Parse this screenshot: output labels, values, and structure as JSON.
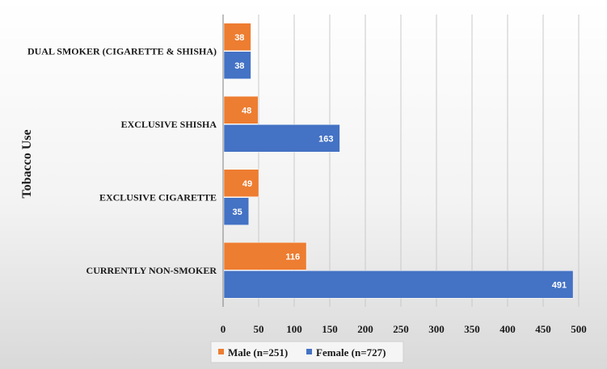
{
  "chart_data": {
    "type": "bar",
    "orientation": "horizontal",
    "categories": [
      "DUAL SMOKER (CIGARETTE & SHISHA)",
      "EXCLUSIVE SHISHA",
      "EXCLUSIVE CIGARETTE",
      "CURRENTLY NON-SMOKER"
    ],
    "series": [
      {
        "name": "Male (n=251)",
        "color": "#ed7d31",
        "values": [
          38,
          48,
          49,
          116
        ]
      },
      {
        "name": "Female (n=727)",
        "color": "#4472c4",
        "values": [
          38,
          163,
          35,
          491
        ]
      }
    ],
    "ylabel": "Tobacco Use",
    "xlabel": "",
    "xlim": [
      0,
      500
    ],
    "xticks": [
      "0",
      "50",
      "100",
      "150",
      "200",
      "250",
      "300",
      "350",
      "400",
      "450",
      "500"
    ],
    "grid": true,
    "legend_position": "bottom"
  }
}
